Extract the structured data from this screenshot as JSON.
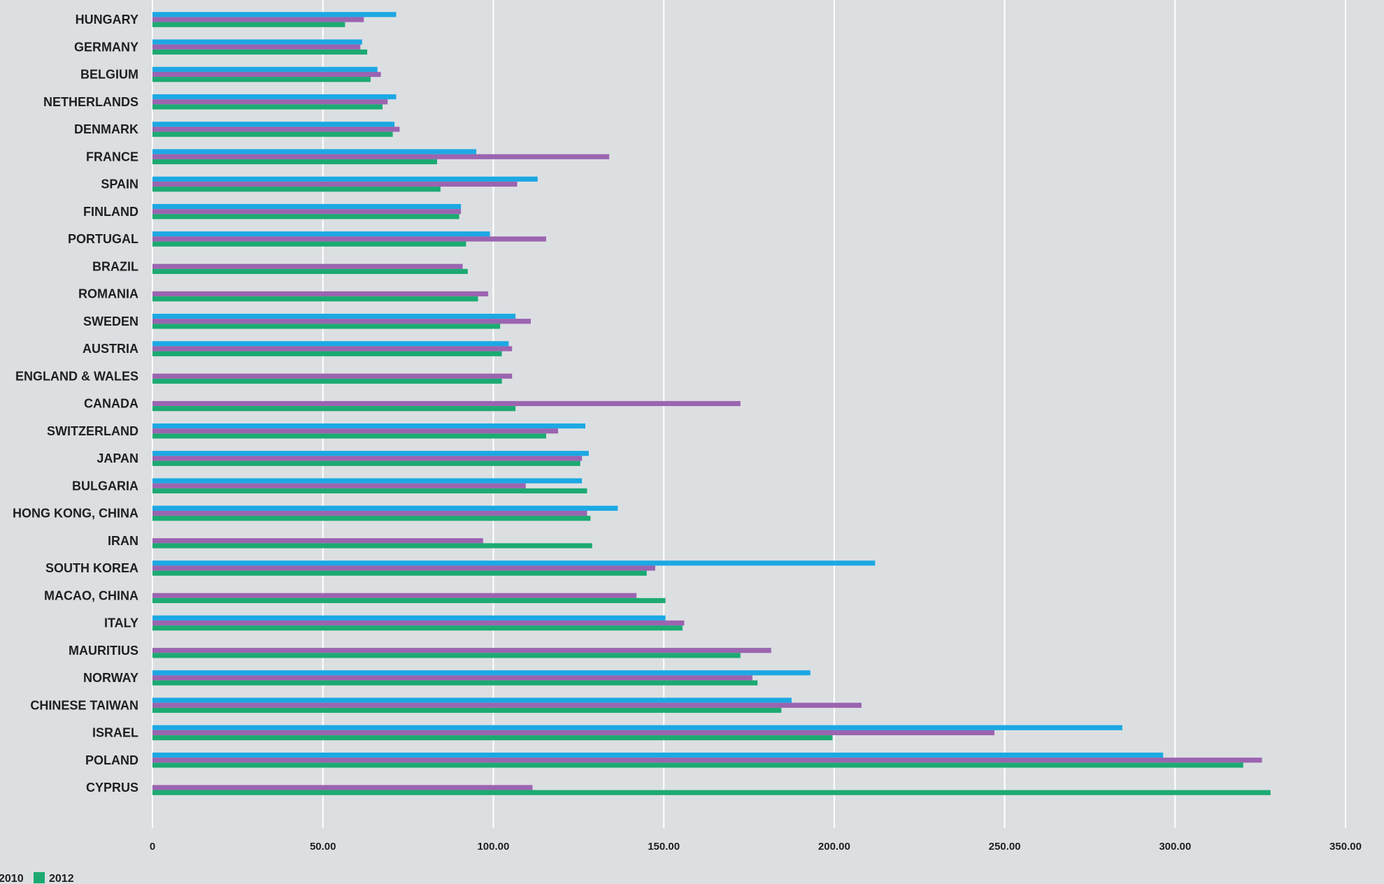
{
  "chart_data": {
    "type": "bar",
    "orientation": "horizontal",
    "categories": [
      "HUNGARY",
      "GERMANY",
      "BELGIUM",
      "NETHERLANDS",
      "DENMARK",
      "FRANCE",
      "SPAIN",
      "FINLAND",
      "PORTUGAL",
      "BRAZIL",
      "ROMANIA",
      "SWEDEN",
      "AUSTRIA",
      "ENGLAND & WALES",
      "CANADA",
      "SWITZERLAND",
      "JAPAN",
      "BULGARIA",
      "HONG KONG, CHINA",
      "IRAN",
      "SOUTH KOREA",
      "MACAO, CHINA",
      "ITALY",
      "MAURITIUS",
      "NORWAY",
      "CHINESE TAIWAN",
      "ISRAEL",
      "POLAND",
      "CYPRUS"
    ],
    "series": [
      {
        "name": "",
        "color": "#1ca8e3",
        "values": [
          71.5,
          61.5,
          66.0,
          71.5,
          71.0,
          95.0,
          113.0,
          90.5,
          99.0,
          null,
          null,
          106.5,
          104.5,
          null,
          null,
          127.0,
          128.0,
          126.0,
          136.5,
          null,
          212.0,
          null,
          150.5,
          null,
          193.0,
          187.5,
          284.5,
          296.5,
          null
        ]
      },
      {
        "name": "",
        "color": "#9b64b0",
        "values": [
          62.0,
          61.0,
          67.0,
          69.0,
          72.5,
          134.0,
          107.0,
          90.5,
          115.5,
          91.0,
          98.5,
          111.0,
          105.5,
          105.5,
          172.5,
          119.0,
          126.0,
          109.5,
          127.5,
          97.0,
          147.5,
          142.0,
          156.0,
          181.5,
          176.0,
          208.0,
          247.0,
          325.5,
          111.5
        ]
      },
      {
        "name": "2012",
        "color": "#1caa72",
        "values": [
          56.5,
          63.0,
          64.0,
          67.5,
          70.5,
          83.5,
          84.5,
          90.0,
          92.0,
          92.5,
          95.5,
          102.0,
          102.5,
          102.5,
          106.5,
          115.5,
          125.5,
          127.5,
          128.5,
          129.0,
          145.0,
          150.5,
          155.5,
          172.5,
          177.5,
          184.5,
          199.5,
          320.0,
          328.0
        ]
      }
    ],
    "xlim": [
      0,
      350
    ],
    "xticks": [
      "0",
      "50.00",
      "100.00",
      "150.00",
      "200.00",
      "250.00",
      "300.00",
      "350.00"
    ],
    "xtick_values": [
      0,
      50,
      100,
      150,
      200,
      250,
      300,
      350
    ],
    "grid": "vertical",
    "legend_position": "bottom-left",
    "legend": {
      "visible_label_1": "2010",
      "visible_label_2": "2012"
    },
    "title": "",
    "xlabel": "",
    "ylabel": ""
  }
}
